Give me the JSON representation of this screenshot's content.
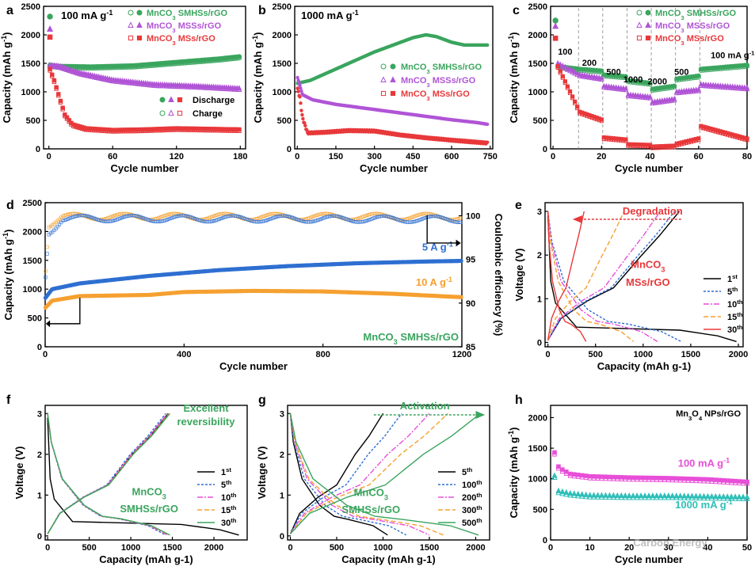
{
  "colors": {
    "green": "#3aa55e",
    "purple": "#b054d6",
    "red": "#e8383a",
    "blue": "#2e6fd1",
    "orange": "#f5a030",
    "black": "#000000",
    "pink": "#e84fd8",
    "teal": "#2fbfb8",
    "arrowRed": "#e8383a",
    "arrowGreen": "#3aa55e"
  },
  "chart_data": [
    {
      "id": "a",
      "panel_label": "a",
      "type": "line",
      "xlabel": "Cycle number",
      "ylabel": "Capacity (mAh g-1)",
      "xlim": [
        -5,
        185
      ],
      "ylim": [
        0,
        2500
      ],
      "xticks": [
        0,
        60,
        120,
        180
      ],
      "yticks": [
        0,
        500,
        1000,
        1500,
        2000,
        2500
      ],
      "title": "100 mA g-1",
      "legend": [
        "MnCO3 SMHSs/rGO",
        "MnCO3 MSSs/rGO",
        "MnCO3 MSs/rGO"
      ],
      "legend2": [
        "Discharge",
        "Charge"
      ],
      "series": [
        {
          "name": "MnCO3 SMHSs/rGO",
          "color": "green",
          "first": 2320,
          "points": [
            [
              1,
              1470
            ],
            [
              10,
              1450
            ],
            [
              40,
              1440
            ],
            [
              80,
              1460
            ],
            [
              120,
              1520
            ],
            [
              160,
              1580
            ],
            [
              180,
              1620
            ]
          ]
        },
        {
          "name": "MnCO3 MSSs/rGO",
          "color": "purple",
          "first": 2100,
          "points": [
            [
              1,
              1470
            ],
            [
              10,
              1450
            ],
            [
              30,
              1330
            ],
            [
              60,
              1210
            ],
            [
              100,
              1130
            ],
            [
              140,
              1100
            ],
            [
              180,
              1060
            ]
          ]
        },
        {
          "name": "MnCO3 MSs/rGO",
          "color": "red",
          "first": 1960,
          "points": [
            [
              1,
              1400
            ],
            [
              5,
              1200
            ],
            [
              10,
              900
            ],
            [
              15,
              600
            ],
            [
              22,
              430
            ],
            [
              35,
              360
            ],
            [
              60,
              330
            ],
            [
              90,
              340
            ],
            [
              120,
              360
            ],
            [
              150,
              350
            ],
            [
              180,
              340
            ]
          ]
        }
      ]
    },
    {
      "id": "b",
      "panel_label": "b",
      "type": "line",
      "xlabel": "Cycle number",
      "ylabel": "Capacity (mAh g-1)",
      "xlim": [
        -10,
        760
      ],
      "ylim": [
        0,
        2500
      ],
      "xticks": [
        0,
        150,
        300,
        450,
        600,
        750
      ],
      "yticks": [
        0,
        500,
        1000,
        1500,
        2000,
        2500
      ],
      "title": "1000 mA g-1",
      "legend": [
        "MnCO3 SMHSs/rGO",
        "MnCO3 MSSs/rGO",
        "MnCO3 MSs/rGO"
      ],
      "series": [
        {
          "name": "MnCO3 SMHSs/rGO",
          "color": "green",
          "points": [
            [
              1,
              1150
            ],
            [
              50,
              1200
            ],
            [
              150,
              1400
            ],
            [
              300,
              1700
            ],
            [
              450,
              1950
            ],
            [
              500,
              2000
            ],
            [
              540,
              1970
            ],
            [
              600,
              1870
            ],
            [
              650,
              1820
            ],
            [
              740,
              1820
            ]
          ]
        },
        {
          "name": "MnCO3 MSSs/rGO",
          "color": "purple",
          "points": [
            [
              1,
              1250
            ],
            [
              20,
              950
            ],
            [
              60,
              860
            ],
            [
              150,
              780
            ],
            [
              300,
              690
            ],
            [
              450,
              600
            ],
            [
              600,
              510
            ],
            [
              700,
              460
            ],
            [
              740,
              430
            ]
          ]
        },
        {
          "name": "MnCO3 MSs/rGO",
          "color": "red",
          "points": [
            [
              1,
              1050
            ],
            [
              10,
              900
            ],
            [
              20,
              550
            ],
            [
              40,
              280
            ],
            [
              100,
              290
            ],
            [
              200,
              320
            ],
            [
              300,
              310
            ],
            [
              400,
              240
            ],
            [
              500,
              190
            ],
            [
              600,
              150
            ],
            [
              740,
              100
            ]
          ]
        }
      ]
    },
    {
      "id": "c",
      "panel_label": "c",
      "type": "scatter",
      "xlabel": "Cycle number",
      "ylabel": "Capacity (mAh g-1)",
      "xlim": [
        -1,
        80
      ],
      "ylim": [
        0,
        2500
      ],
      "xticks": [
        0,
        20,
        40,
        60,
        80
      ],
      "yticks": [
        0,
        500,
        1000,
        1500,
        2000,
        2500
      ],
      "rate_labels": [
        "100",
        "200",
        "500",
        "1000",
        "2000",
        "500",
        "100 mA g-1"
      ],
      "legend": [
        "MnCO3 SMHSs/rGO",
        "MnCO3 MSSs/rGO",
        "MnCO3 MSs/rGO"
      ],
      "series": [
        {
          "name": "MnCO3 SMHSs/rGO",
          "color": "green",
          "segments": [
            [
              1,
              2250
            ],
            [
              2,
              1450
            ],
            [
              10,
              1400
            ],
            [
              20,
              1300
            ],
            [
              30,
              1200
            ],
            [
              40,
              1050
            ],
            [
              50,
              1230
            ],
            [
              60,
              1400
            ],
            [
              80,
              1470
            ]
          ]
        },
        {
          "name": "MnCO3 MSSs/rGO",
          "color": "purple",
          "segments": [
            [
              1,
              2150
            ],
            [
              2,
              1500
            ],
            [
              10,
              1300
            ],
            [
              20,
              1100
            ],
            [
              30,
              950
            ],
            [
              40,
              820
            ],
            [
              50,
              1000
            ],
            [
              60,
              1130
            ],
            [
              80,
              1070
            ]
          ]
        },
        {
          "name": "MnCO3 MSs/rGO",
          "color": "red",
          "segments": [
            [
              1,
              1940
            ],
            [
              2,
              1450
            ],
            [
              10,
              650
            ],
            [
              20,
              200
            ],
            [
              30,
              80
            ],
            [
              40,
              40
            ],
            [
              50,
              90
            ],
            [
              60,
              400
            ],
            [
              80,
              180
            ]
          ]
        }
      ]
    },
    {
      "id": "d",
      "panel_label": "d",
      "type": "line",
      "xlabel": "Cycle number",
      "ylabel": "Capacity (mAh g-1)",
      "ylabel2": "Coulombic efficiency (%)",
      "xlim": [
        0,
        1200
      ],
      "ylim": [
        0,
        2500
      ],
      "ylim2": [
        85,
        101.5
      ],
      "xticks": [
        0,
        400,
        800,
        1200
      ],
      "yticks": [
        0,
        500,
        1000,
        1500,
        2000,
        2500
      ],
      "yticks2": [
        85,
        90,
        95,
        100
      ],
      "labels": [
        "5 A g-1",
        "10 A g-1",
        "MnCO3 SMHSs/rGO"
      ],
      "series": [
        {
          "name": "5 A g-1",
          "color": "blue",
          "points": [
            [
              1,
              850
            ],
            [
              20,
              1000
            ],
            [
              100,
              1100
            ],
            [
              300,
              1230
            ],
            [
              500,
              1330
            ],
            [
              700,
              1400
            ],
            [
              900,
              1450
            ],
            [
              1100,
              1480
            ],
            [
              1200,
              1490
            ]
          ]
        },
        {
          "name": "10 A g-1",
          "color": "orange",
          "points": [
            [
              1,
              680
            ],
            [
              20,
              800
            ],
            [
              100,
              880
            ],
            [
              300,
              900
            ],
            [
              360,
              930
            ],
            [
              400,
              950
            ],
            [
              600,
              970
            ],
            [
              800,
              960
            ],
            [
              1000,
              920
            ],
            [
              1200,
              860
            ]
          ]
        },
        {
          "name": "CE 5 A g-1",
          "color": "blue",
          "points": [
            [
              1,
              93
            ],
            [
              10,
              98
            ],
            [
              50,
              99.7
            ],
            [
              1200,
              99.6
            ]
          ]
        },
        {
          "name": "CE 10 A g-1",
          "color": "orange",
          "points": [
            [
              1,
              94
            ],
            [
              10,
              99
            ],
            [
              50,
              99.9
            ],
            [
              1200,
              99.9
            ]
          ]
        }
      ]
    },
    {
      "id": "e",
      "panel_label": "e",
      "type": "line",
      "xlabel": "Capacity (mAh g-1)",
      "ylabel": "Voltage (V)",
      "xlim": [
        -30,
        2050
      ],
      "ylim": [
        -0.1,
        3.2
      ],
      "xticks": [
        0,
        500,
        1000,
        1500,
        2000
      ],
      "yticks": [
        0,
        1,
        2,
        3
      ],
      "annotation": "Degradation",
      "material": "MnCO3 MSs/rGO",
      "legend": [
        "1st",
        "5th",
        "10th",
        "15th",
        "30th"
      ]
    },
    {
      "id": "f",
      "panel_label": "f",
      "type": "line",
      "xlabel": "Capacity (mAh g-1)",
      "ylabel": "Voltage (V)",
      "xlim": [
        -30,
        2400
      ],
      "ylim": [
        -0.1,
        3.2
      ],
      "xticks": [
        0,
        500,
        1000,
        1500,
        2000
      ],
      "yticks": [
        0,
        1,
        2,
        3
      ],
      "annotation": "Excellent reversibility",
      "material": "MnCO3 SMHSs/rGO",
      "legend": [
        "1st",
        "5th",
        "10th",
        "15th",
        "30th"
      ]
    },
    {
      "id": "g",
      "panel_label": "g",
      "type": "line",
      "xlabel": "Capacity (mAh g-1)",
      "ylabel": "Voltage (V)",
      "xlim": [
        -30,
        2150
      ],
      "ylim": [
        -0.1,
        3.2
      ],
      "xticks": [
        0,
        500,
        1000,
        1500,
        2000
      ],
      "yticks": [
        0,
        1,
        2,
        3
      ],
      "annotation": "Activation",
      "material": "MnCO3 SMHSs/rGO",
      "legend": [
        "5th",
        "100th",
        "200th",
        "300th",
        "500th"
      ]
    },
    {
      "id": "h",
      "panel_label": "h",
      "type": "scatter",
      "xlabel": "Cycle number",
      "ylabel": "Capacity (mAh g-1)",
      "xlim": [
        0,
        50
      ],
      "ylim": [
        0,
        2200
      ],
      "xticks": [
        0,
        10,
        20,
        30,
        40,
        50
      ],
      "yticks": [
        0,
        500,
        1000,
        1500,
        2000
      ],
      "title": "Mn3O4 NPs/rGO",
      "labels": [
        "100 mA g-1",
        "1000 mA g-1"
      ],
      "series": [
        {
          "name": "100 mA g-1",
          "color": "pink",
          "points": [
            [
              1,
              1430
            ],
            [
              2,
              1200
            ],
            [
              3,
              1150
            ],
            [
              5,
              1080
            ],
            [
              10,
              1040
            ],
            [
              20,
              1020
            ],
            [
              30,
              1010
            ],
            [
              40,
              990
            ],
            [
              50,
              950
            ]
          ]
        },
        {
          "name": "1000 mA g-1",
          "color": "teal",
          "points": [
            [
              1,
              1050
            ],
            [
              2,
              800
            ],
            [
              5,
              760
            ],
            [
              10,
              730
            ],
            [
              20,
              720
            ],
            [
              30,
              720
            ],
            [
              40,
              710
            ],
            [
              50,
              700
            ]
          ]
        }
      ]
    }
  ],
  "watermark": "Carbon Energy"
}
